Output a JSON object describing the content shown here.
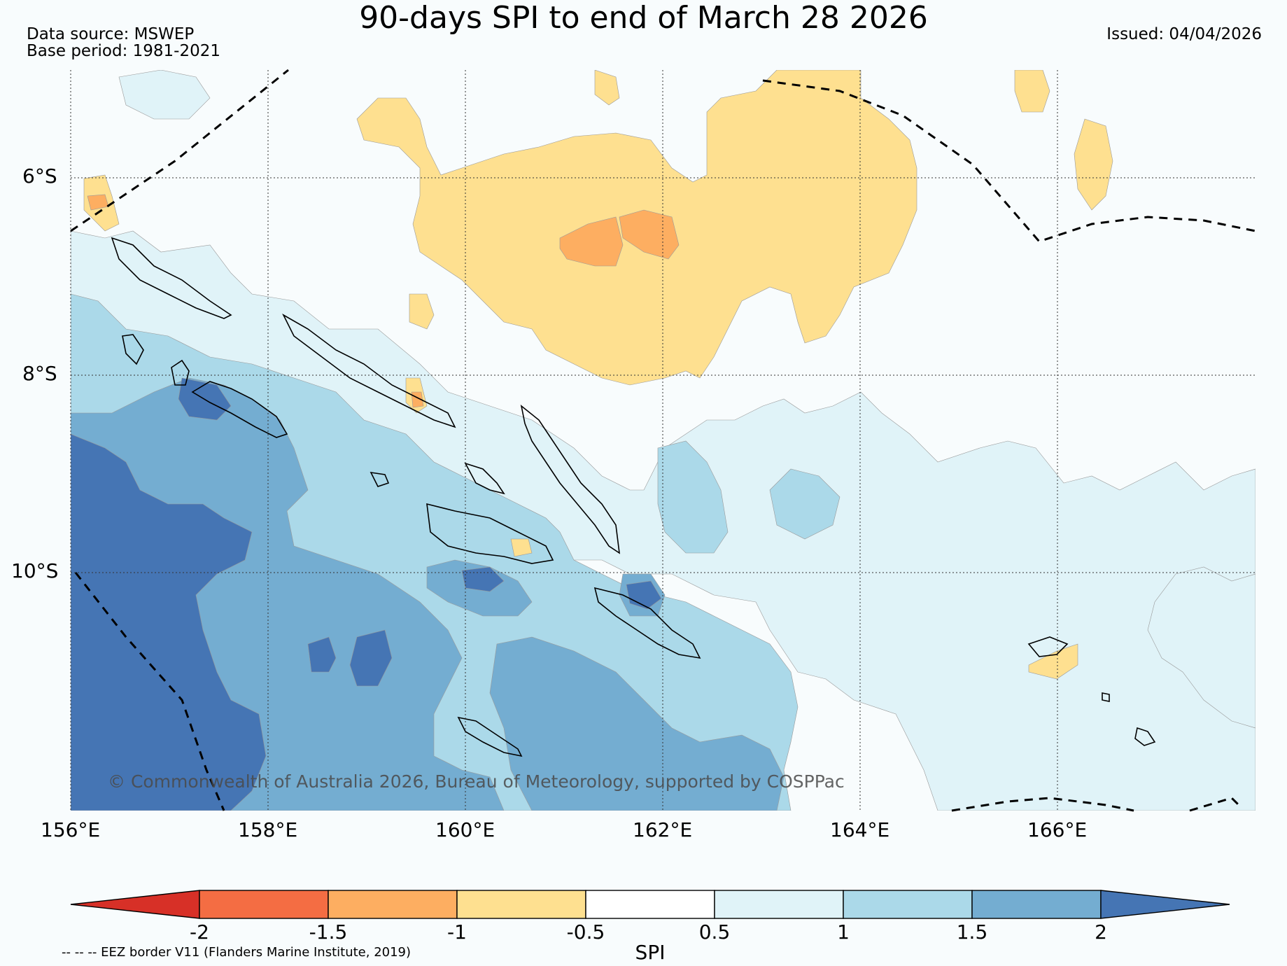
{
  "title": "90-days SPI to end of March 28 2026",
  "source_line": "Data source: MSWEP",
  "base_period_line": "Base period: 1981-2021",
  "issued": "Issued: 04/04/2026",
  "copyright": "© Commonwealth of Australia 2026, Bureau of Meteorology, supported by COSPPac",
  "eez_note": "-- -- -- EEZ border V11 (Flanders Marine Institute, 2019)",
  "lat_labels": [
    "6°S",
    "8°S",
    "10°S"
  ],
  "lon_labels": [
    "156°E",
    "158°E",
    "160°E",
    "162°E",
    "164°E",
    "166°E"
  ],
  "colorbar": {
    "label": "SPI",
    "ticks": [
      "-2",
      "-1.5",
      "-1",
      "-0.5",
      "0.5",
      "1",
      "1.5",
      "2"
    ],
    "colors": [
      "#d73027",
      "#f46d43",
      "#fdae61",
      "#fee090",
      "#ffffff",
      "#e0f3f8",
      "#abd9e9",
      "#74add1",
      "#4575b4"
    ]
  },
  "map_extent": {
    "lon": [
      156,
      168
    ],
    "lat": [
      -12.2,
      -4.7
    ]
  }
}
